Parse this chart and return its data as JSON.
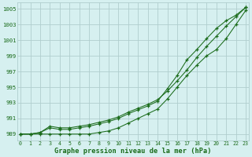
{
  "x": [
    0,
    1,
    2,
    3,
    4,
    5,
    6,
    7,
    8,
    9,
    10,
    11,
    12,
    13,
    14,
    15,
    16,
    17,
    18,
    19,
    20,
    21,
    22,
    23
  ],
  "line1": [
    989.0,
    989.0,
    989.2,
    990.0,
    989.8,
    989.8,
    990.0,
    990.2,
    990.5,
    990.8,
    991.2,
    991.8,
    992.3,
    992.8,
    993.4,
    994.5,
    995.8,
    997.2,
    998.8,
    1000.2,
    1001.5,
    1002.8,
    1004.0,
    1005.2
  ],
  "line2": [
    989.0,
    989.0,
    989.0,
    989.0,
    989.0,
    989.0,
    989.0,
    989.0,
    989.2,
    989.4,
    989.8,
    990.4,
    991.0,
    991.6,
    992.2,
    993.5,
    995.0,
    996.5,
    997.8,
    999.0,
    999.8,
    1001.2,
    1003.0,
    1004.8
  ],
  "line3": [
    989.0,
    989.0,
    989.2,
    989.8,
    989.6,
    989.6,
    989.8,
    990.0,
    990.3,
    990.6,
    991.0,
    991.6,
    992.1,
    992.6,
    993.2,
    994.8,
    996.5,
    998.5,
    999.8,
    1001.2,
    1002.5,
    1003.5,
    1004.2,
    1005.2
  ],
  "line_color": "#1a6b1a",
  "bg_color": "#d6f0f0",
  "grid_color": "#b0cece",
  "xlabel": "Graphe pression niveau de la mer (hPa)",
  "yticks": [
    989,
    991,
    993,
    995,
    997,
    999,
    1001,
    1003,
    1005
  ],
  "xticks": [
    0,
    1,
    2,
    3,
    4,
    5,
    6,
    7,
    8,
    9,
    10,
    11,
    12,
    13,
    14,
    15,
    16,
    17,
    18,
    19,
    20,
    21,
    22,
    23
  ],
  "ylim": [
    988.2,
    1005.8
  ],
  "xlim": [
    -0.3,
    23.3
  ]
}
